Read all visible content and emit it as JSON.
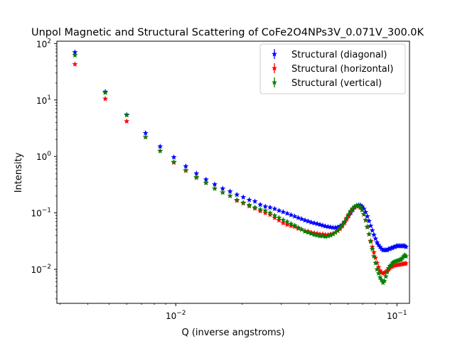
{
  "chart_data": {
    "type": "scatter",
    "title": "Unpol Magnetic and Structural Scattering of CoFe2O4NPs3V_0.071V_300.0K",
    "xlabel": "Q (inverse angstroms)",
    "ylabel": "Intensity",
    "x_scale": "log",
    "y_scale": "log",
    "xlim": [
      0.0029,
      0.114
    ],
    "ylim": [
      0.0025,
      110
    ],
    "x_ticks": [
      {
        "value": 0.01,
        "base": "10",
        "exp": "−2"
      },
      {
        "value": 0.1,
        "base": "10",
        "exp": "−1"
      }
    ],
    "y_ticks": [
      {
        "value": 0.01,
        "base": "10",
        "exp": "−2"
      },
      {
        "value": 0.1,
        "base": "10",
        "exp": "−1"
      },
      {
        "value": 1,
        "base": "10",
        "exp": "0"
      },
      {
        "value": 10,
        "base": "10",
        "exp": "1"
      },
      {
        "value": 100,
        "base": "10",
        "exp": "2"
      }
    ],
    "grid": false,
    "legend_position": "top-right",
    "series": [
      {
        "name": "Structural (diagonal)",
        "color": "#0000ff",
        "marker": "star",
        "points": [
          [
            0.0035,
            70
          ],
          [
            0.0048,
            14
          ],
          [
            0.006,
            5.5
          ],
          [
            0.0073,
            2.6
          ],
          [
            0.0085,
            1.5
          ],
          [
            0.0098,
            0.97
          ],
          [
            0.0111,
            0.67
          ],
          [
            0.0124,
            0.5
          ],
          [
            0.0137,
            0.39
          ],
          [
            0.015,
            0.32
          ],
          [
            0.0163,
            0.27
          ],
          [
            0.0176,
            0.24
          ],
          [
            0.0189,
            0.21
          ],
          [
            0.0202,
            0.19
          ],
          [
            0.0215,
            0.17
          ],
          [
            0.0228,
            0.16
          ],
          [
            0.0241,
            0.14
          ],
          [
            0.0254,
            0.13
          ],
          [
            0.0267,
            0.125
          ],
          [
            0.028,
            0.118
          ],
          [
            0.0293,
            0.11
          ],
          [
            0.0306,
            0.104
          ],
          [
            0.0319,
            0.098
          ],
          [
            0.0332,
            0.092
          ],
          [
            0.0345,
            0.087
          ],
          [
            0.0358,
            0.082
          ],
          [
            0.0371,
            0.078
          ],
          [
            0.0384,
            0.074
          ],
          [
            0.0397,
            0.071
          ],
          [
            0.041,
            0.068
          ],
          [
            0.0423,
            0.066
          ],
          [
            0.0436,
            0.064
          ],
          [
            0.0449,
            0.062
          ],
          [
            0.0462,
            0.06
          ],
          [
            0.0475,
            0.058
          ],
          [
            0.0488,
            0.057
          ],
          [
            0.0501,
            0.056
          ],
          [
            0.0514,
            0.055
          ],
          [
            0.0527,
            0.055
          ],
          [
            0.054,
            0.056
          ],
          [
            0.0553,
            0.058
          ],
          [
            0.0566,
            0.062
          ],
          [
            0.0579,
            0.068
          ],
          [
            0.0592,
            0.077
          ],
          [
            0.0605,
            0.088
          ],
          [
            0.0618,
            0.1
          ],
          [
            0.0631,
            0.113
          ],
          [
            0.0644,
            0.125
          ],
          [
            0.0657,
            0.134
          ],
          [
            0.067,
            0.138
          ],
          [
            0.0683,
            0.137
          ],
          [
            0.0696,
            0.13
          ],
          [
            0.0709,
            0.118
          ],
          [
            0.0722,
            0.103
          ],
          [
            0.0735,
            0.087
          ],
          [
            0.0748,
            0.072
          ],
          [
            0.0761,
            0.059
          ],
          [
            0.0774,
            0.049
          ],
          [
            0.0787,
            0.041
          ],
          [
            0.08,
            0.035
          ],
          [
            0.0813,
            0.03
          ],
          [
            0.0826,
            0.027
          ],
          [
            0.0839,
            0.025
          ],
          [
            0.0852,
            0.023
          ],
          [
            0.0865,
            0.022
          ],
          [
            0.0878,
            0.022
          ],
          [
            0.0891,
            0.022
          ],
          [
            0.0904,
            0.022
          ],
          [
            0.0917,
            0.023
          ],
          [
            0.093,
            0.023
          ],
          [
            0.0943,
            0.024
          ],
          [
            0.0956,
            0.024
          ],
          [
            0.0969,
            0.025
          ],
          [
            0.0982,
            0.025
          ],
          [
            0.0995,
            0.026
          ],
          [
            0.1008,
            0.026
          ],
          [
            0.1021,
            0.026
          ],
          [
            0.1034,
            0.026
          ],
          [
            0.1047,
            0.026
          ],
          [
            0.106,
            0.026
          ],
          [
            0.1073,
            0.026
          ],
          [
            0.1086,
            0.026
          ],
          [
            0.1099,
            0.025
          ]
        ]
      },
      {
        "name": "Structural (horizontal)",
        "color": "#ff0000",
        "marker": "star",
        "points": [
          [
            0.0035,
            43
          ],
          [
            0.0048,
            10.5
          ],
          [
            0.006,
            4.2
          ],
          [
            0.0073,
            2.2
          ],
          [
            0.0085,
            1.25
          ],
          [
            0.0098,
            0.78
          ],
          [
            0.0111,
            0.56
          ],
          [
            0.0124,
            0.42
          ],
          [
            0.0137,
            0.34
          ],
          [
            0.015,
            0.27
          ],
          [
            0.0163,
            0.23
          ],
          [
            0.0176,
            0.2
          ],
          [
            0.0189,
            0.165
          ],
          [
            0.0202,
            0.148
          ],
          [
            0.0215,
            0.132
          ],
          [
            0.0228,
            0.12
          ],
          [
            0.0241,
            0.108
          ],
          [
            0.0254,
            0.1
          ],
          [
            0.0267,
            0.093
          ],
          [
            0.028,
            0.082
          ],
          [
            0.0293,
            0.074
          ],
          [
            0.0306,
            0.066
          ],
          [
            0.0319,
            0.062
          ],
          [
            0.0332,
            0.059
          ],
          [
            0.0345,
            0.057
          ],
          [
            0.0358,
            0.053
          ],
          [
            0.0371,
            0.051
          ],
          [
            0.0384,
            0.048
          ],
          [
            0.0397,
            0.047
          ],
          [
            0.041,
            0.045
          ],
          [
            0.0423,
            0.044
          ],
          [
            0.0436,
            0.043
          ],
          [
            0.0449,
            0.042
          ],
          [
            0.0462,
            0.042
          ],
          [
            0.0475,
            0.041
          ],
          [
            0.0488,
            0.041
          ],
          [
            0.0501,
            0.042
          ],
          [
            0.0514,
            0.043
          ],
          [
            0.0527,
            0.045
          ],
          [
            0.054,
            0.048
          ],
          [
            0.0553,
            0.052
          ],
          [
            0.0566,
            0.058
          ],
          [
            0.0579,
            0.066
          ],
          [
            0.0592,
            0.077
          ],
          [
            0.0605,
            0.09
          ],
          [
            0.0618,
            0.104
          ],
          [
            0.0631,
            0.117
          ],
          [
            0.0644,
            0.126
          ],
          [
            0.0657,
            0.131
          ],
          [
            0.067,
            0.131
          ],
          [
            0.0683,
            0.125
          ],
          [
            0.0696,
            0.112
          ],
          [
            0.0709,
            0.094
          ],
          [
            0.0722,
            0.074
          ],
          [
            0.0735,
            0.056
          ],
          [
            0.0748,
            0.042
          ],
          [
            0.0761,
            0.032
          ],
          [
            0.0774,
            0.025
          ],
          [
            0.0787,
            0.02
          ],
          [
            0.08,
            0.016
          ],
          [
            0.0813,
            0.013
          ],
          [
            0.0826,
            0.011
          ],
          [
            0.0839,
            0.0095
          ],
          [
            0.0852,
            0.0088
          ],
          [
            0.0865,
            0.0085
          ],
          [
            0.0878,
            0.0087
          ],
          [
            0.0891,
            0.009
          ],
          [
            0.0904,
            0.0095
          ],
          [
            0.0917,
            0.01
          ],
          [
            0.093,
            0.0105
          ],
          [
            0.0943,
            0.011
          ],
          [
            0.0956,
            0.0113
          ],
          [
            0.0969,
            0.0116
          ],
          [
            0.0982,
            0.0118
          ],
          [
            0.0995,
            0.012
          ],
          [
            0.1008,
            0.012
          ],
          [
            0.1021,
            0.0121
          ],
          [
            0.1034,
            0.0122
          ],
          [
            0.1047,
            0.0123
          ],
          [
            0.106,
            0.0124
          ],
          [
            0.1073,
            0.0125
          ],
          [
            0.1086,
            0.0126
          ],
          [
            0.1099,
            0.0128
          ]
        ]
      },
      {
        "name": "Structural (vertical)",
        "color": "#008000",
        "marker": "star",
        "points": [
          [
            0.0035,
            62
          ],
          [
            0.0048,
            13.5
          ],
          [
            0.006,
            5.4
          ],
          [
            0.0073,
            2.2
          ],
          [
            0.0085,
            1.25
          ],
          [
            0.0098,
            0.8
          ],
          [
            0.0111,
            0.57
          ],
          [
            0.0124,
            0.43
          ],
          [
            0.0137,
            0.34
          ],
          [
            0.015,
            0.27
          ],
          [
            0.0163,
            0.23
          ],
          [
            0.0176,
            0.2
          ],
          [
            0.0189,
            0.17
          ],
          [
            0.0202,
            0.152
          ],
          [
            0.0215,
            0.138
          ],
          [
            0.0228,
            0.125
          ],
          [
            0.0241,
            0.115
          ],
          [
            0.0254,
            0.11
          ],
          [
            0.0267,
            0.1
          ],
          [
            0.028,
            0.09
          ],
          [
            0.0293,
            0.082
          ],
          [
            0.0306,
            0.075
          ],
          [
            0.0319,
            0.07
          ],
          [
            0.0332,
            0.064
          ],
          [
            0.0345,
            0.06
          ],
          [
            0.0358,
            0.055
          ],
          [
            0.0371,
            0.051
          ],
          [
            0.0384,
            0.047
          ],
          [
            0.0397,
            0.045
          ],
          [
            0.041,
            0.043
          ],
          [
            0.0423,
            0.041
          ],
          [
            0.0436,
            0.04
          ],
          [
            0.0449,
            0.039
          ],
          [
            0.0462,
            0.039
          ],
          [
            0.0475,
            0.038
          ],
          [
            0.0488,
            0.039
          ],
          [
            0.0501,
            0.04
          ],
          [
            0.0514,
            0.042
          ],
          [
            0.0527,
            0.045
          ],
          [
            0.054,
            0.049
          ],
          [
            0.0553,
            0.054
          ],
          [
            0.0566,
            0.061
          ],
          [
            0.0579,
            0.07
          ],
          [
            0.0592,
            0.081
          ],
          [
            0.0605,
            0.094
          ],
          [
            0.0618,
            0.108
          ],
          [
            0.0631,
            0.12
          ],
          [
            0.0644,
            0.13
          ],
          [
            0.0657,
            0.135
          ],
          [
            0.067,
            0.134
          ],
          [
            0.0683,
            0.127
          ],
          [
            0.0696,
            0.113
          ],
          [
            0.0709,
            0.095
          ],
          [
            0.0722,
            0.075
          ],
          [
            0.0735,
            0.057
          ],
          [
            0.0748,
            0.042
          ],
          [
            0.0761,
            0.031
          ],
          [
            0.0774,
            0.023
          ],
          [
            0.0787,
            0.017
          ],
          [
            0.08,
            0.013
          ],
          [
            0.0813,
            0.01
          ],
          [
            0.0826,
            0.0085
          ],
          [
            0.0839,
            0.0072
          ],
          [
            0.0852,
            0.0065
          ],
          [
            0.0865,
            0.0058
          ],
          [
            0.0878,
            0.0062
          ],
          [
            0.0891,
            0.0075
          ],
          [
            0.0904,
            0.009
          ],
          [
            0.0917,
            0.0105
          ],
          [
            0.093,
            0.0115
          ],
          [
            0.0943,
            0.012
          ],
          [
            0.0956,
            0.013
          ],
          [
            0.0969,
            0.0135
          ],
          [
            0.0982,
            0.0138
          ],
          [
            0.0995,
            0.014
          ],
          [
            0.1008,
            0.0143
          ],
          [
            0.1021,
            0.0145
          ],
          [
            0.1034,
            0.0148
          ],
          [
            0.1047,
            0.015
          ],
          [
            0.106,
            0.016
          ],
          [
            0.1073,
            0.017
          ],
          [
            0.1086,
            0.018
          ],
          [
            0.1099,
            0.017
          ]
        ]
      }
    ]
  }
}
